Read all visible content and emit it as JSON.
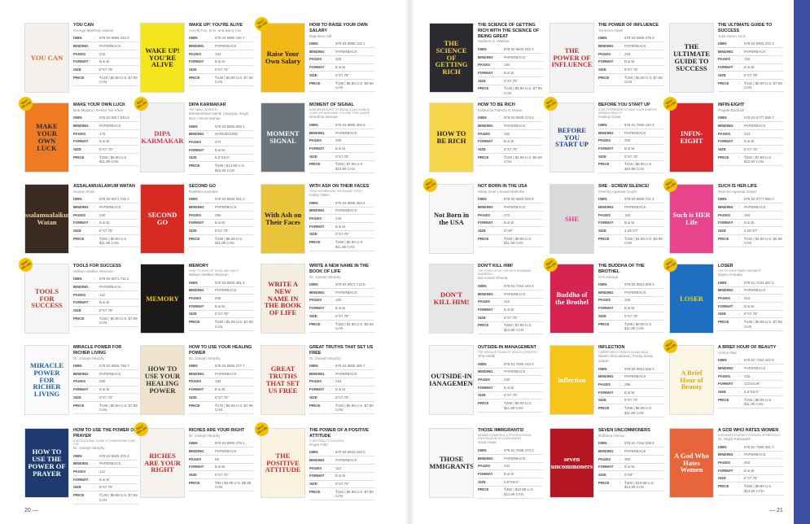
{
  "labels": {
    "isbn": "ISBN",
    "binding": "BINDING",
    "pages": "PAGES",
    "format": "FORMAT",
    "size": "SIZE",
    "price": "PRICE",
    "badge": "BEST SELLER",
    "colon": ":"
  },
  "page_numbers": {
    "left": "20 —",
    "right": "— 21"
  },
  "colors": {
    "accent_bar": "#3f4fa3",
    "badge": "#f2c200"
  },
  "books": [
    {
      "title": "You Can",
      "author": "George Matthew Adams",
      "isbn": "978 93 8995 184 6",
      "binding": "PAPERBACK",
      "pages": "232",
      "format": "B & W",
      "size": "5\"X7.75\"",
      "price": "₹149 | $5.99 U.S. $7.99 CAN",
      "cover_text": "YOU CAN",
      "cover_bg": "#f4f1ec",
      "cover_fg": "#e0662a"
    },
    {
      "title": "Wake Up! You're Alive",
      "author": "Arnold Fox, M.D. and Barry Fox",
      "isbn": "978 93 8995 190 7",
      "binding": "PAPERBACK",
      "pages": "184",
      "format": "B & W",
      "size": "5\"X7.75\"",
      "price": "₹149 | $5.99 U.S. $7.99 CAN",
      "cover_text": "WAKE UP! YOU'RE ALIVE",
      "cover_bg": "#f5e51c",
      "cover_fg": "#222"
    },
    {
      "title": "How to Raise Your Own Salary",
      "author": "Napoleon Hill",
      "isbn": "978 93 8995 118 1",
      "binding": "PAPERBACK",
      "pages": "320",
      "format": "B & W",
      "size": "5\"X7.75\"",
      "price": "₹199 | $6.99 U.S. $9.99 CAN",
      "bestseller": true,
      "cover_text": "Raise Your Own Salary",
      "cover_bg": "#f2b817",
      "cover_fg": "#222"
    },
    {
      "title": "Make Your Own Luck",
      "author": "Bob Miglani | Rehan Yar Khan",
      "isbn": "978 93 8917 845 6",
      "binding": "PAPERBACK",
      "pages": "176",
      "format": "B & W",
      "size": "5\"X7.75\"",
      "price": "₹250 | $8.99 U.S. $11.99 CAN",
      "bestseller": true,
      "cover_text": "MAKE YOUR OWN LUCK",
      "cover_bg": "#ee7a22",
      "cover_fg": "#1f2a44"
    },
    {
      "title": "Dipa Karmakar",
      "subtitle": "The Small Wonder",
      "author": "Bishweshwar Nandi | Digvijay Singh Deo | Vimal Mohan",
      "isbn": "978 93 8836 950 3",
      "binding": "HARDBOUND",
      "pages": "272",
      "format": "B & W",
      "size": "5.5\"X8.5\"",
      "price": "₹499 | $14.99 U.S. $19.99 CAN",
      "bestseller": true,
      "cover_text": "DIPA KARMAKAR",
      "cover_bg": "#eef0f2",
      "cover_fg": "#d9344f"
    },
    {
      "title": "Moment of Signal",
      "subtitle": "How being alert to signals can change your life and make you a better leader",
      "author": "Sreedhar Bevara",
      "isbn": "978 93 8905 302 9",
      "binding": "PAPERBACK",
      "pages": "280",
      "format": "B & W",
      "size": "5\"X7.75\"",
      "price": "₹250 | $7.99 U.S. $10.99 CAN",
      "cover_text": "MOMENT SIGNAL",
      "cover_bg": "#6b747c",
      "cover_fg": "#fff"
    },
    {
      "title": "Assalamualaikum Watan",
      "author": "Sanjay Khan",
      "isbn": "978 93 8971 755 4",
      "binding": "PAPERBACK",
      "pages": "240",
      "format": "B & W",
      "size": "5\"X7.75\"",
      "price": "₹250 | $8.99 U.S. $11.99 CAN",
      "cover_text": "Assalamualaikum Watan",
      "cover_bg": "#3b2a22",
      "cover_fg": "#e9d29a"
    },
    {
      "title": "Second Go",
      "author": "Radhika Sachdev",
      "isbn": "978 93 8836 951 0",
      "binding": "PAPERBACK",
      "pages": "296",
      "format": "B & W",
      "size": "5\"X7.75\"",
      "price": "₹299 | $8.99 U.S. $11.99 CAN",
      "cover_text": "SECOND GO",
      "cover_bg": "#d62a22",
      "cover_fg": "#fff"
    },
    {
      "title": "With Ash on Their Faces",
      "subtitle": "Yezidi women and the Islamic State",
      "author": "Cathy Otten",
      "isbn": "978 93 8905 394 4",
      "binding": "PAPERBACK",
      "pages": "240",
      "format": "B & W",
      "size": "5\"X7.75\"",
      "price": "₹299 | $8.99 U.S. $11.99 CAN",
      "cover_text": "With Ash on Their Faces",
      "cover_bg": "#e9c33a",
      "cover_fg": "#222"
    },
    {
      "title": "Tools for Success",
      "author": "William Walker Atkinson",
      "isbn": "978 93 8971 711 2",
      "binding": "PAPERBACK",
      "pages": "112",
      "format": "B & W",
      "size": "5\"X7.75\"",
      "price": "₹150 | $5.99 U.S. $7.99 CAN",
      "bestseller": true,
      "cover_text": "TOOLS FOR SUCCESS",
      "cover_bg": "#f5f5f5",
      "cover_fg": "#c0322a"
    },
    {
      "title": "Memory",
      "subtitle": "How to develop, train, and use it",
      "author": "William Walker Atkinson",
      "isbn": "978 93 8905 381 4",
      "binding": "PAPERBACK",
      "pages": "208",
      "format": "B & W",
      "size": "5\"X7.75\"",
      "price": "₹150 | $5.99 U.S. $7.99 CAN",
      "cover_text": "MEMORY",
      "cover_bg": "#1c1a18",
      "cover_fg": "#f2c230"
    },
    {
      "title": "Write a New Name in the Book of Life",
      "author": "Dr. Joseph Murphy",
      "isbn": "978 93 8971 712 9",
      "binding": "PAPERBACK",
      "pages": "160",
      "format": "B & W",
      "size": "5\"X7.75\"",
      "price": "₹150 | $4.99 U.S. $6.99 CAN",
      "cover_text": "WRITE A NEW NAME IN THE BOOK OF LIFE",
      "cover_bg": "#f4eee2",
      "cover_fg": "#b3262a"
    },
    {
      "title": "Miracle Power for Richer Living",
      "author": "Dr. Joseph Murphy",
      "isbn": "978 93 8956 755 7",
      "binding": "PAPERBACK",
      "pages": "260",
      "format": "B & W",
      "size": "5\"X7.75\"",
      "price": "₹199 | $5.99 U.S. $7.99 CAN",
      "cover_text": "MIRACLE POWER FOR RICHER LIVING",
      "cover_bg": "#fafafa",
      "cover_fg": "#1d5fa8"
    },
    {
      "title": "How to Use Your Healing Power",
      "author": "Dr. Joseph Murphy",
      "isbn": "978 93 8905 377 7",
      "binding": "PAPERBACK",
      "pages": "192",
      "format": "B & W",
      "size": "5\"X7.75\"",
      "price": "₹175 | $5.99 U.S. $7.99 CAN",
      "cover_text": "HOW TO USE YOUR HEALING POWER",
      "cover_bg": "#efe3cf",
      "cover_fg": "#333"
    },
    {
      "title": "Great Truths That Set Us Free",
      "author": "Dr. Joseph Murphy",
      "isbn": "978 93 8905 380 7",
      "binding": "PAPERBACK",
      "pages": "216",
      "format": "B & W",
      "size": "5\"X7.75\"",
      "price": "₹150 | $5.99 U.S. $7.99 CAN",
      "cover_text": "GREAT TRUTHS THAT SET US FREE",
      "cover_bg": "#f7f0e6",
      "cover_fg": "#c12a2a"
    },
    {
      "title": "How to Use the Power of Prayer",
      "subtitle": "A motivational guide to transform your life",
      "author": "Dr. Joseph Murphy",
      "isbn": "978 93 8905 378 4",
      "binding": "PAPERBACK",
      "pages": "112",
      "format": "B & W",
      "size": "5\"X7.75\"",
      "price": "₹149 | $5.99 U.S. $7.99 CAN",
      "cover_text": "HOW TO USE THE POWER OF PRAYER",
      "cover_bg": "#1f3a6e",
      "cover_fg": "#fff"
    },
    {
      "title": "Riches Are Your Right",
      "author": "Dr. Joseph Murphy",
      "isbn": "978 93 8905 379 1",
      "binding": "PAPERBACK",
      "pages": "96",
      "format": "B & W",
      "size": "5\"X7.75\"",
      "price": "₹99 | $3.99 U.S. $5.99 CAN",
      "bestseller": true,
      "cover_text": "RICHES ARE YOUR RIGHT",
      "cover_bg": "#f6f3ee",
      "cover_fg": "#c8252b"
    },
    {
      "title": "The Power of a Positive Attitude",
      "subtitle": "Your road to success",
      "author": "Roger Fritz",
      "isbn": "978 93 8943 264 0",
      "binding": "PAPERBACK",
      "pages": "112",
      "format": "B & W",
      "size": "5\"X7.75\"",
      "price": "₹150 | $5.99 U.S. $7.99 CAN",
      "bestseller": true,
      "cover_text": "THE POSITIVE ATTITUDE",
      "cover_bg": "#fbf3e0",
      "cover_fg": "#d4262a"
    },
    {
      "title": "The Science of Getting Rich with The Science of Being Great",
      "author": "Wallace D. Wattles",
      "isbn": "978 93 8943 292 3",
      "binding": "PAPERBACK",
      "pages": "184",
      "format": "B & W",
      "size": "5\"X7.75\"",
      "price": "₹149 | $5.99 U.S. $7.99 CAN",
      "cover_text": "THE SCIENCE OF GETTING RICH",
      "cover_bg": "#2a2a30",
      "cover_fg": "#f2d04b"
    },
    {
      "title": "The Power of Influence",
      "author": "Yoritomo-Tashi",
      "isbn": "978 93 8905 376 0",
      "binding": "PAPERBACK",
      "pages": "256",
      "format": "B & W",
      "size": "5\"X7.75\"",
      "price": "₹150 | $5.99 U.S. $7.99 CAN",
      "cover_text": "THE POWER OF INFLUENCE",
      "cover_bg": "#f3f3f3",
      "cover_fg": "#c5262b"
    },
    {
      "title": "The Ultimate Guide to Success",
      "author": "Julia Seton, M.D.",
      "isbn": "978 93 8905 375 3",
      "binding": "PAPERBACK",
      "pages": "152",
      "format": "B & W",
      "size": "5\"X7.75\"",
      "price": "₹150 | $5.99 U.S. $7.99 CAN",
      "cover_text": "THE ULTIMATE GUIDE TO SUCCESS",
      "cover_bg": "#eef0f2",
      "cover_fg": "#222"
    },
    {
      "title": "How to Be Rich",
      "author": "Edited by Patricia G Horan",
      "isbn": "978 93 8905 374 6",
      "binding": "PAPERBACK",
      "pages": "152",
      "format": "B & W",
      "size": "5\"X7.75\"",
      "price": "₹150 | $4.99 U.S. $6.99 CAN",
      "cover_text": "HOW TO BE RICH",
      "cover_bg": "#f7d54a",
      "cover_fg": "#222"
    },
    {
      "title": "Before You Start Up",
      "subtitle": "How to prepare to make your startup dream a reality",
      "author": "Pankaj Goyal",
      "isbn": "978 81 7599 440 9",
      "binding": "PAPERBACK",
      "pages": "200",
      "format": "B & W",
      "size": "5\"X7.75\"",
      "price": "₹249 | $8.99 U.S. $10.99 CAN",
      "bestseller": true,
      "cover_text": "BEFORE YOU START UP",
      "cover_bg": "#f2f2f2",
      "cover_fg": "#1f3f8f"
    },
    {
      "title": "Infin-Eight",
      "author": "Prajakt Budhale",
      "isbn": "978 93 8777 958 7",
      "binding": "PAPERBACK",
      "pages": "224",
      "format": "B & W",
      "size": "5\"X7.75\"",
      "price": "₹250 | $7.99 U.S. $10.99 CAN",
      "bestseller": true,
      "cover_text": "INFIN-EIGHT",
      "cover_bg": "#d8262b",
      "cover_fg": "#fff"
    },
    {
      "title": "Not Born in the USA",
      "author": "Nikita Goel | Sonal Malhotra",
      "isbn": "978 93 8653 833 8",
      "binding": "PAPERBACK",
      "pages": "272",
      "format": "B & W",
      "size": "6\"X9\"",
      "price": "₹299 | $8.99 U.S. $11.99 CAN",
      "bestseller": true,
      "cover_text": "Not Born in the USA",
      "cover_bg": "#f7f7f7",
      "cover_fg": "#222"
    },
    {
      "title": "She - Screw Silence!",
      "author": "Reecha Agarwal Goyal",
      "isbn": "978 93 8956 701 4",
      "binding": "PAPERBACK",
      "pages": "160",
      "format": "B & W",
      "size": "4.25\"X7\"",
      "price": "₹150 | $4.99 U.S. $6.99 CAN",
      "cover_text": "SHE",
      "cover_bg": "#d9d9d9",
      "cover_fg": "#e8399a"
    },
    {
      "title": "Such Is Her Life",
      "author": "Reecha Agarwal Goyal",
      "isbn": "978 93 8777 953 2",
      "binding": "PAPERBACK",
      "pages": "184",
      "format": "B & W",
      "size": "4.25\"X7\"",
      "price": "₹150 | $4.99 U.S. $6.99 CAN",
      "bestseller": true,
      "cover_text": "Such is HER Life",
      "cover_bg": "#e8458e",
      "cover_fg": "#fff"
    },
    {
      "title": "Don't Kill Him!",
      "subtitle": "The story of my life with Bhagwan Rajneesh",
      "author": "Ma Anand Sheela",
      "isbn": "978 81 7254 444 3",
      "binding": "PAPERBACK",
      "pages": "312",
      "format": "B & W",
      "size": "5\"X7.75\"",
      "price": "₹250 | $7.99 U.S. $10.99 CAN",
      "cover_text": "DON'T KILL HIM!",
      "cover_bg": "#e6e6e6",
      "cover_fg": "#c8262a"
    },
    {
      "title": "The Buddha of the Brothel",
      "author": "Kris Advaya",
      "isbn": "978 93 8653 809 3",
      "binding": "PAPERBACK",
      "pages": "336",
      "format": "B & W",
      "size": "5\"X7.75\"",
      "price": "₹299 | $8.99 U.S. $11.99 CAN",
      "bestseller": true,
      "cover_text": "Buddha of the Brothel",
      "cover_bg": "#d6234f",
      "cover_fg": "#fff"
    },
    {
      "title": "Loser",
      "subtitle": "Life of a software engineer",
      "author": "Dipen Ambalia",
      "isbn": "978 81 7234 397 2",
      "binding": "PAPERBACK",
      "pages": "312",
      "format": "B & W",
      "size": "5\"X7.75\"",
      "price": "₹199 | $5.99 U.S. $7.99 CAN",
      "bestseller": true,
      "cover_text": "LOSER",
      "cover_bg": "#1d6fc2",
      "cover_fg": "#f6d21a"
    },
    {
      "title": "Outside-In Management",
      "subtitle": "The new age funda of wealth creation",
      "author": "Shiv Malik",
      "isbn": "978 81 7599 442 3",
      "binding": "PAPERBACK",
      "pages": "240",
      "format": "B & W",
      "size": "5\"X7.75\"",
      "price": "₹299 | $8.99 U.S. $11.99 CAN",
      "cover_text": "OUTSIDE-IN MANAGEMENT",
      "cover_bg": "#f7f7f7",
      "cover_fg": "#222"
    },
    {
      "title": "Inflection",
      "subtitle": "Career arcs from evolving India",
      "author": "Nilesh Shrivastava | Pushp Deep Gupta",
      "isbn": "978 93 8653 826 0",
      "binding": "PAPERBACK",
      "pages": "296",
      "format": "B & W",
      "size": "5\"X7.75\"",
      "price": "₹299 | $8.99 U.S. $11.99 CAN",
      "cover_text": "inflection",
      "cover_bg": "#f7c41a",
      "cover_fg": "#fff"
    },
    {
      "title": "A Brief Hour of Beauty",
      "author": "Ammu Nair",
      "isbn": "978 81 7254 442 9",
      "binding": "PAPERBACK",
      "pages": "232",
      "format": "COLOUR",
      "size": "5.5\"X8.5\"",
      "price": "₹295 | $8.99 U.S. $11.99 CAN",
      "bestseller": true,
      "cover_text": "A Brief Hour of Beauty",
      "cover_bg": "#fbf5e4",
      "cover_fg": "#e0a512"
    },
    {
      "title": "Those Immigrants!",
      "subtitle": "Indians in America: a psychological exploration of achievement",
      "author": "Scott Haas",
      "isbn": "978 81 7599 373 0",
      "binding": "PAPERBACK",
      "pages": "344",
      "format": "B & W",
      "size": "5.5\"X8.5\"",
      "price": "₹350 | $10.99 U.S. $14.99 CAN",
      "cover_text": "THOSE IMMIGRANTS!",
      "cover_bg": "#f7f7f7",
      "cover_fg": "#222"
    },
    {
      "title": "Seven Uncommoners",
      "author": "Ruthana Verma",
      "isbn": "978 81 7254 539 6",
      "binding": "PAPERBACK",
      "pages": "300",
      "format": "B & W",
      "size": "6\"X9\"",
      "price": "₹350 | $10.99 U.S. $14.99 CAN",
      "cover_text": "seven uncommoners",
      "cover_bg": "#b5161f",
      "cover_fg": "#fff"
    },
    {
      "title": "A God Who Hates Women",
      "subtitle": "A woman's journey through oppression",
      "author": "Dr. Majid Rafizadeh",
      "isbn": "978 81 7599 301 3",
      "binding": "PAPERBACK",
      "pages": "264",
      "format": "B & W",
      "size": "5\"X7.75\"",
      "price": "₹295 | $9.99 U.S. $13.99 CAN",
      "cover_text": "A God Who Hates Women",
      "cover_bg": "#e8643a",
      "cover_fg": "#fff"
    }
  ]
}
